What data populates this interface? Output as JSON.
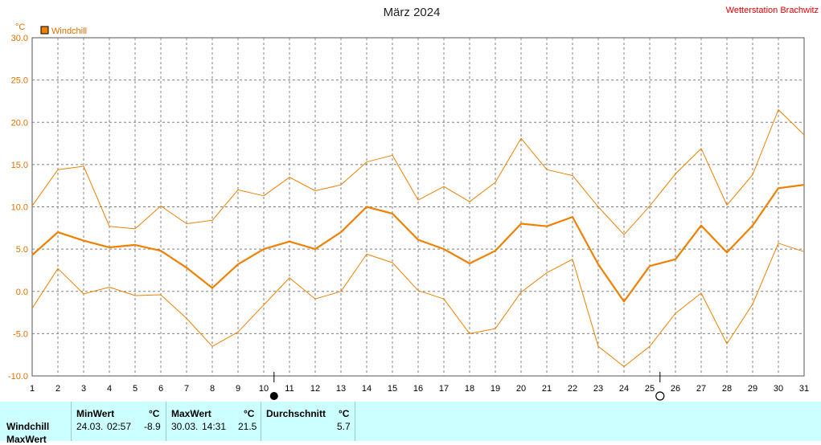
{
  "header": {
    "title": "März 2024",
    "station": "Wetterstation Brachwitz",
    "unit": "°C",
    "legend_label": "Windchill"
  },
  "colors": {
    "series": "#f08000",
    "grid": "#808080",
    "station": "#e00000",
    "stats_bg": "#ccffff"
  },
  "chart_data": {
    "type": "line",
    "x": [
      1,
      2,
      3,
      4,
      5,
      6,
      7,
      8,
      9,
      10,
      11,
      12,
      13,
      14,
      15,
      16,
      17,
      18,
      19,
      20,
      21,
      22,
      23,
      24,
      25,
      26,
      27,
      28,
      29,
      30,
      31
    ],
    "xticks": [
      "1",
      "2",
      "3",
      "4",
      "5",
      "6",
      "7",
      "8",
      "9",
      "10",
      "11",
      "12",
      "13",
      "14",
      "15",
      "16",
      "17",
      "18",
      "19",
      "20",
      "21",
      "22",
      "23",
      "24",
      "25",
      "26",
      "27",
      "28",
      "29",
      "30",
      "31"
    ],
    "yticks": [
      "30.0",
      "25.0",
      "20.0",
      "15.0",
      "10.0",
      "5.0",
      "0.0",
      "-5.0",
      "-10.0"
    ],
    "ylim": [
      -10,
      30
    ],
    "grid": true,
    "legend": "top-left",
    "series": [
      {
        "name": "Windchill",
        "role": "avg",
        "values": [
          4.3,
          7.0,
          6.0,
          5.2,
          5.5,
          4.8,
          2.8,
          0.4,
          3.2,
          5.0,
          5.9,
          5.0,
          7.0,
          10.0,
          9.2,
          6.1,
          5.0,
          3.3,
          4.8,
          8.0,
          7.7,
          8.8,
          3.2,
          -1.2,
          3.0,
          3.8,
          7.8,
          4.6,
          7.8,
          12.2,
          12.6
        ]
      },
      {
        "role": "max",
        "values": [
          10.1,
          14.4,
          14.8,
          7.7,
          7.4,
          10.1,
          8.0,
          8.4,
          12.0,
          11.3,
          13.5,
          11.9,
          12.6,
          15.3,
          16.1,
          10.8,
          12.4,
          10.6,
          12.9,
          18.1,
          14.4,
          13.7,
          10.0,
          6.7,
          10.1,
          13.9,
          16.9,
          10.2,
          13.8,
          21.5,
          18.5
        ]
      },
      {
        "role": "min",
        "values": [
          -2.0,
          2.7,
          -0.3,
          0.5,
          -0.5,
          -0.4,
          -3.2,
          -6.5,
          -4.8,
          -1.6,
          1.6,
          -0.9,
          0.0,
          4.4,
          3.4,
          0.1,
          -0.9,
          -5.0,
          -4.4,
          -0.1,
          2.2,
          3.8,
          -6.5,
          -8.9,
          -6.5,
          -2.6,
          -0.2,
          -6.2,
          -1.5,
          5.7,
          4.7
        ]
      }
    ],
    "moon_phases": [
      {
        "day": 10,
        "phase": "new-moon"
      },
      {
        "day": 25,
        "phase": "full-moon"
      }
    ]
  },
  "stats": {
    "minwert": {
      "label": "MinWert",
      "unit": "°C",
      "date": "24.03.",
      "time": "02:57",
      "value": "-8.9"
    },
    "maxwert": {
      "label": "MaxWert",
      "unit": "°C",
      "date": "30.03.",
      "time": "14:31",
      "value": "21.5"
    },
    "durchschnitt": {
      "label": "Durchschnitt",
      "unit": "°C",
      "value": "5.7"
    },
    "rows": [
      "Windchill",
      "MaxWert"
    ]
  }
}
